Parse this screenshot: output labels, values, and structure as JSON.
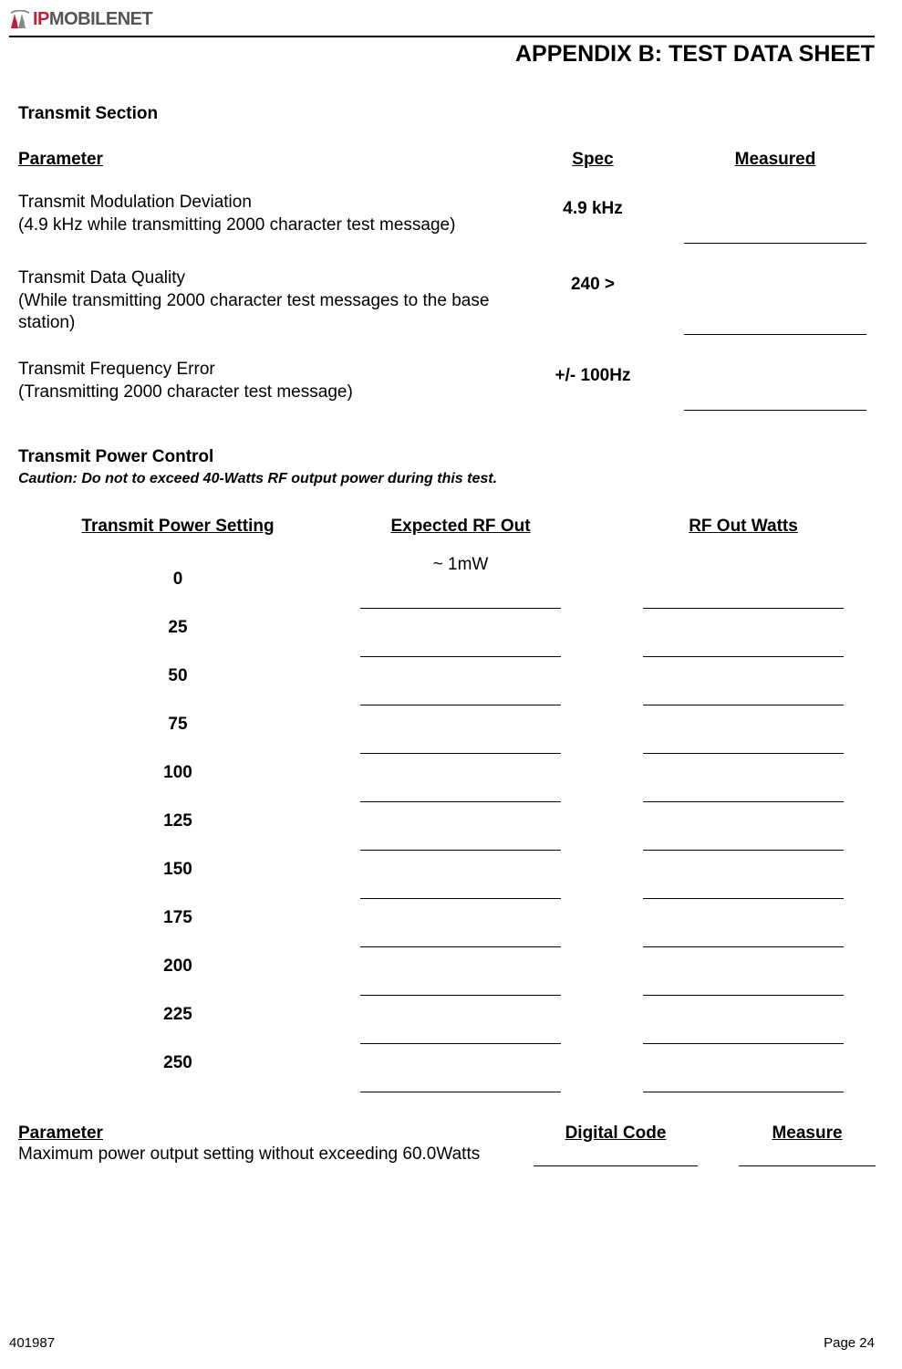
{
  "logo": {
    "ip": "IP",
    "mobile": "M",
    "obilenet": "OBILENET",
    "sub": ""
  },
  "appendix_title": "APPENDIX B:  TEST DATA SHEET",
  "transmit_section": {
    "title": "Transmit Section",
    "headers": {
      "param": "Parameter",
      "spec": "Spec",
      "measured": "Measured"
    },
    "rows": [
      {
        "param": "Transmit Modulation Deviation\n(4.9 kHz while transmitting 2000 character test message)",
        "spec": "4.9 kHz"
      },
      {
        "param": "Transmit Data Quality\n(While transmitting 2000 character test messages to the base station)",
        "spec": "240 >"
      },
      {
        "param": "Transmit Frequency Error\n(Transmitting 2000 character test message)",
        "spec": "+/- 100Hz"
      }
    ]
  },
  "power_control": {
    "title": "Transmit Power Control",
    "caution": "Caution: Do not to exceed 40-Watts RF output power during this test.",
    "headers": {
      "setting": "Transmit Power Setting",
      "expected": "Expected RF Out",
      "rfout": "RF Out Watts"
    },
    "rows": [
      {
        "setting": "0",
        "expected": "~ 1mW"
      },
      {
        "setting": "25",
        "expected": ""
      },
      {
        "setting": "50",
        "expected": ""
      },
      {
        "setting": "75",
        "expected": ""
      },
      {
        "setting": "100",
        "expected": ""
      },
      {
        "setting": "125",
        "expected": ""
      },
      {
        "setting": "150",
        "expected": ""
      },
      {
        "setting": "175",
        "expected": ""
      },
      {
        "setting": "200",
        "expected": ""
      },
      {
        "setting": "225",
        "expected": ""
      },
      {
        "setting": "250",
        "expected": ""
      }
    ]
  },
  "bottom": {
    "headers": {
      "param": "Parameter",
      "code": "Digital Code",
      "measure": "Measure"
    },
    "param": "Maximum power output setting without exceeding 60.0Watts"
  },
  "footer": {
    "doc": "401987",
    "page": "Page 24"
  }
}
